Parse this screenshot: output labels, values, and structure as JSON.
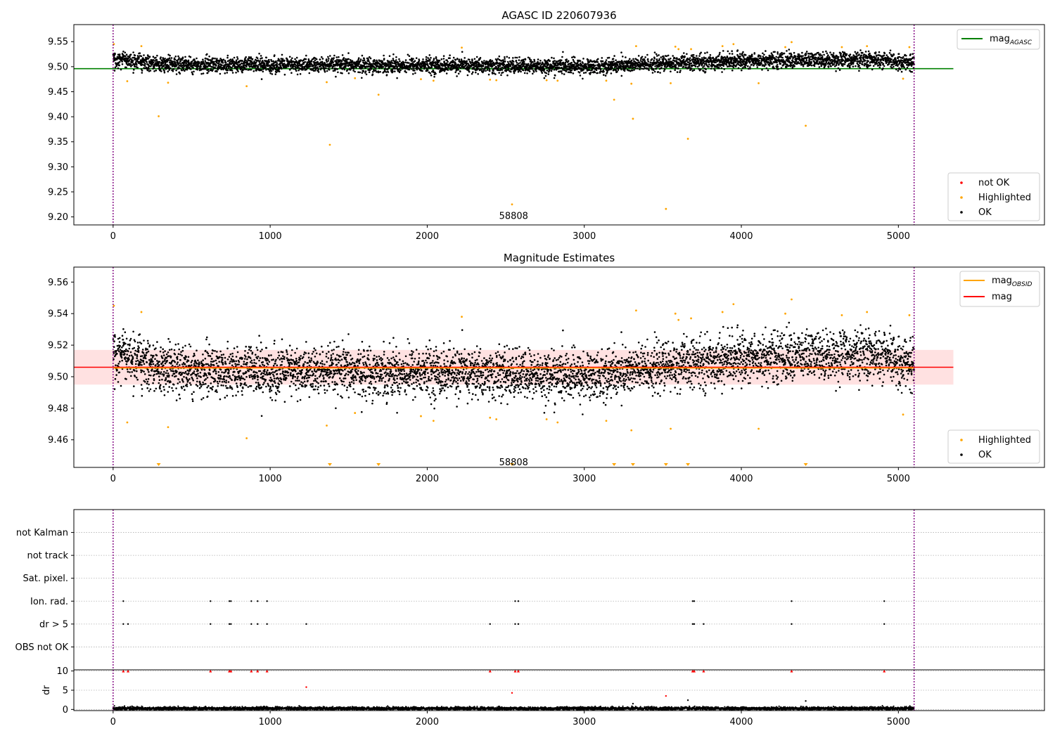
{
  "chart_data": [
    {
      "type": "scatter",
      "title": "AGASC ID 220607936",
      "xlim": [
        -250,
        5930
      ],
      "ylim": [
        9.184,
        9.584
      ],
      "xticks": [
        0,
        1000,
        2000,
        3000,
        4000,
        5000
      ],
      "yticks": [
        9.2,
        9.25,
        9.3,
        9.35,
        9.4,
        9.45,
        9.5,
        9.55
      ],
      "ytick_labels": [
        "9.20",
        "9.25",
        "9.30",
        "9.35",
        "9.40",
        "9.45",
        "9.50",
        "9.55"
      ],
      "vlines": [
        0,
        5100
      ],
      "hline": {
        "name": "mag_{AGASC}",
        "label_main": "mag",
        "label_sub": "AGASC",
        "y": 9.496,
        "x": [
          -250,
          5350
        ],
        "color": "#008000"
      },
      "annotation": {
        "text": "58808",
        "x": 2550,
        "y": 9.2
      },
      "ok_band": {
        "center": 9.506,
        "spread": 0.009,
        "trend": [
          [
            0,
            9.514
          ],
          [
            300,
            9.505
          ],
          [
            1000,
            9.503
          ],
          [
            2000,
            9.503
          ],
          [
            3000,
            9.5
          ],
          [
            3400,
            9.505
          ],
          [
            3700,
            9.508
          ],
          [
            4000,
            9.512
          ],
          [
            4800,
            9.514
          ],
          [
            5100,
            9.508
          ]
        ],
        "count": 5050
      },
      "highlighted": [
        [
          5,
          9.545
        ],
        [
          90,
          9.471
        ],
        [
          180,
          9.541
        ],
        [
          290,
          9.401
        ],
        [
          350,
          9.468
        ],
        [
          850,
          9.461
        ],
        [
          1360,
          9.469
        ],
        [
          1380,
          9.344
        ],
        [
          1540,
          9.477
        ],
        [
          1690,
          9.444
        ],
        [
          1960,
          9.475
        ],
        [
          2040,
          9.472
        ],
        [
          2220,
          9.538
        ],
        [
          2400,
          9.474
        ],
        [
          2440,
          9.473
        ],
        [
          2540,
          9.225
        ],
        [
          2760,
          9.473
        ],
        [
          2830,
          9.472
        ],
        [
          3140,
          9.472
        ],
        [
          3190,
          9.434
        ],
        [
          3300,
          9.466
        ],
        [
          3310,
          9.396
        ],
        [
          3330,
          9.541
        ],
        [
          3520,
          9.216
        ],
        [
          3550,
          9.467
        ],
        [
          3580,
          9.54
        ],
        [
          3600,
          9.535
        ],
        [
          3660,
          9.356
        ],
        [
          3680,
          9.535
        ],
        [
          3880,
          9.541
        ],
        [
          3950,
          9.545
        ],
        [
          4110,
          9.467
        ],
        [
          4280,
          9.539
        ],
        [
          4320,
          9.549
        ],
        [
          4410,
          9.382
        ],
        [
          4640,
          9.539
        ],
        [
          4800,
          9.541
        ],
        [
          5030,
          9.476
        ],
        [
          5070,
          9.539
        ]
      ],
      "not_ok": [],
      "legend": [
        {
          "label": "mag_{AGASC}",
          "main": "mag",
          "sub": "AGASC",
          "marker": "line",
          "color": "#008000",
          "placement": "upper right"
        },
        {
          "label": "not OK",
          "marker": "dot",
          "color": "#ff0000",
          "placement": "lower right"
        },
        {
          "label": "Highlighted",
          "marker": "dot",
          "color": "#ffa500",
          "placement": "lower right"
        },
        {
          "label": "OK",
          "marker": "dot",
          "color": "#000000",
          "placement": "lower right"
        }
      ]
    },
    {
      "type": "scatter",
      "title": "Magnitude Estimates",
      "xlim": [
        -250,
        5930
      ],
      "ylim": [
        9.4425,
        9.5695
      ],
      "xticks": [
        0,
        1000,
        2000,
        3000,
        4000,
        5000
      ],
      "yticks": [
        9.46,
        9.48,
        9.5,
        9.52,
        9.54,
        9.56
      ],
      "ytick_labels": [
        "9.46",
        "9.48",
        "9.50",
        "9.52",
        "9.54",
        "9.56"
      ],
      "vlines": [
        0,
        5100
      ],
      "band": {
        "y0": 9.495,
        "y1": 9.517,
        "x": [
          -250,
          5350
        ],
        "color": "#ffb3b3",
        "alpha": 0.4
      },
      "hline_mag": {
        "name": "mag",
        "y": 9.506,
        "x": [
          -250,
          5350
        ],
        "color": "#ff0000"
      },
      "hline_obsid": {
        "name": "mag_{OBSID}",
        "label_main": "mag",
        "label_sub": "OBSID",
        "y": 9.5055,
        "x": [
          0,
          5100
        ],
        "color": "#ffa500"
      },
      "annotation": {
        "text": "58808",
        "x": 2550,
        "y": 9.446
      },
      "highlighted": [
        [
          5,
          9.545
        ],
        [
          90,
          9.471
        ],
        [
          180,
          9.541
        ],
        [
          350,
          9.468
        ],
        [
          850,
          9.461
        ],
        [
          1360,
          9.469
        ],
        [
          1540,
          9.477
        ],
        [
          1960,
          9.475
        ],
        [
          2040,
          9.472
        ],
        [
          2220,
          9.538
        ],
        [
          2400,
          9.474
        ],
        [
          2440,
          9.473
        ],
        [
          2760,
          9.473
        ],
        [
          2830,
          9.471
        ],
        [
          3140,
          9.472
        ],
        [
          3300,
          9.466
        ],
        [
          3330,
          9.542
        ],
        [
          3550,
          9.467
        ],
        [
          3580,
          9.54
        ],
        [
          3600,
          9.536
        ],
        [
          3680,
          9.537
        ],
        [
          3880,
          9.541
        ],
        [
          3950,
          9.546
        ],
        [
          4110,
          9.467
        ],
        [
          4280,
          9.54
        ],
        [
          4320,
          9.549
        ],
        [
          4640,
          9.539
        ],
        [
          4800,
          9.541
        ],
        [
          5030,
          9.476
        ],
        [
          5070,
          9.539
        ]
      ],
      "off_scale": [
        290,
        1380,
        1690,
        2540,
        3190,
        3310,
        3520,
        3660,
        4410
      ],
      "legend": [
        {
          "label": "mag_{OBSID}",
          "main": "mag",
          "sub": "OBSID",
          "marker": "line",
          "color": "#ffa500",
          "placement": "upper right"
        },
        {
          "label": "mag",
          "marker": "line",
          "color": "#ff0000",
          "placement": "upper right"
        },
        {
          "label": "Highlighted",
          "marker": "dot",
          "color": "#ffa500",
          "placement": "lower right"
        },
        {
          "label": "OK",
          "marker": "dot",
          "color": "#000000",
          "placement": "lower right"
        }
      ]
    },
    {
      "type": "scatter",
      "title": "",
      "xlim": [
        -250,
        5930
      ],
      "ylim": [
        0,
        7
      ],
      "flag_rows": [
        "OBS not OK",
        "dr > 5",
        "Ion. rad.",
        "Sat. pixel.",
        "not track",
        "not Kalman"
      ],
      "flags": {
        "Ion. rad.": [
          65,
          620,
          740,
          750,
          880,
          920,
          980,
          2560,
          2580,
          3690,
          3700,
          4320,
          4910
        ],
        "dr > 5": [
          65,
          95,
          620,
          740,
          750,
          880,
          920,
          980,
          1230,
          2400,
          2560,
          2580,
          3690,
          3700,
          3760,
          4320,
          4910
        ]
      },
      "grid": "horizontal dotted",
      "vlines": [
        0,
        5100
      ]
    },
    {
      "type": "scatter",
      "title": "",
      "xlim": [
        -250,
        5930
      ],
      "ylim": [
        -0.3,
        10.3
      ],
      "xticks": [
        0,
        1000,
        2000,
        3000,
        4000,
        5000
      ],
      "yticks": [
        0,
        5,
        10
      ],
      "ylabel": "dr",
      "vlines": [
        0,
        5100
      ],
      "dr_base": {
        "level": 0.25,
        "spread": 0.2,
        "count": 5050
      },
      "red_capped": [
        65,
        95,
        620,
        740,
        750,
        880,
        920,
        980,
        2400,
        2560,
        2580,
        3690,
        3700,
        3760,
        4320,
        4910
      ],
      "red_points": [
        [
          1230,
          5.8
        ],
        [
          2540,
          4.3
        ],
        [
          3520,
          3.5
        ]
      ],
      "black_points": [
        [
          3660,
          2.4
        ],
        [
          4410,
          2.2
        ],
        [
          3310,
          1.5
        ]
      ]
    }
  ]
}
